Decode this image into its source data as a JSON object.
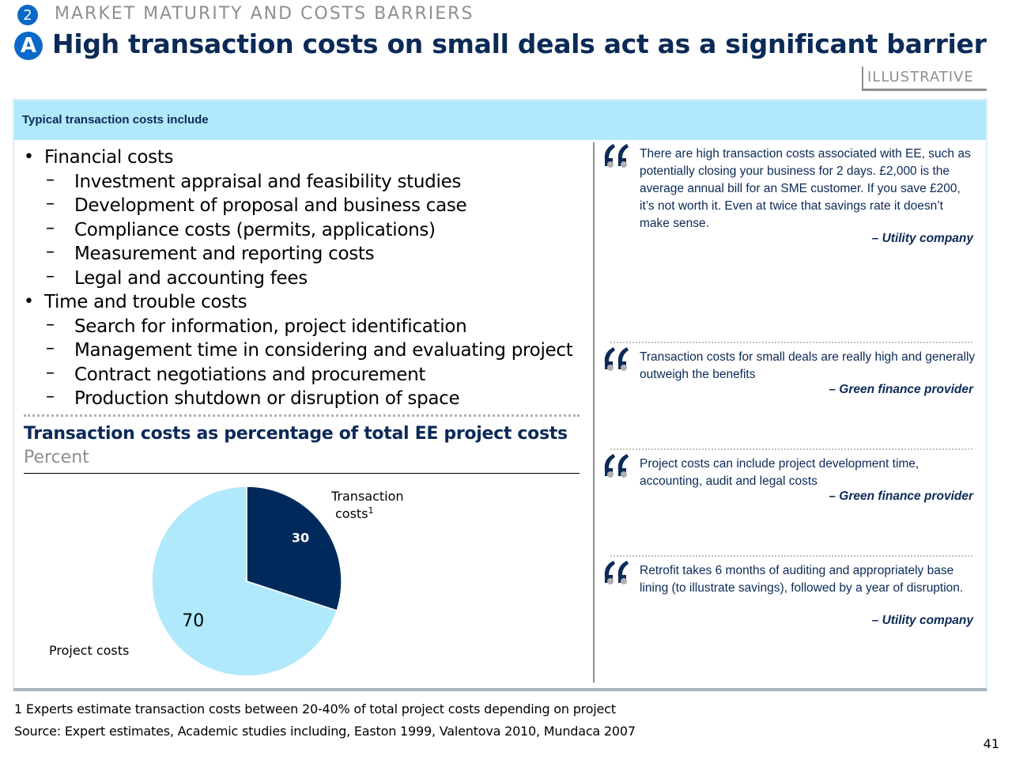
{
  "header": {
    "section_number": "2",
    "section_title": "MARKET MATURITY AND COSTS BARRIERS",
    "title_letter": "A",
    "title": "High transaction costs on small deals act as a significant barrier",
    "tag": "ILLUSTRATIVE"
  },
  "panel": {
    "header_label": "Typical transaction costs include",
    "list": [
      {
        "level": 1,
        "marker": "•",
        "text": "Financial costs"
      },
      {
        "level": 2,
        "marker": "–",
        "text": "Investment appraisal and feasibility studies"
      },
      {
        "level": 2,
        "marker": "–",
        "text": "Development of proposal and business case"
      },
      {
        "level": 2,
        "marker": "–",
        "text": "Compliance costs (permits, applications)"
      },
      {
        "level": 2,
        "marker": "–",
        "text": "Measurement and reporting costs"
      },
      {
        "level": 2,
        "marker": "–",
        "text": "Legal and accounting fees"
      },
      {
        "level": 1,
        "marker": "•",
        "text": "Time and trouble costs"
      },
      {
        "level": 2,
        "marker": "–",
        "text": "Search for information, project identification"
      },
      {
        "level": 2,
        "marker": "–",
        "text": "Management time in considering and evaluating project"
      },
      {
        "level": 2,
        "marker": "–",
        "text": "Contract negotiations and procurement"
      },
      {
        "level": 2,
        "marker": "–",
        "text": "Production shutdown or disruption of space"
      }
    ]
  },
  "chart_data": {
    "type": "pie",
    "title": "Transaction costs as percentage of total EE project costs",
    "unit": "Percent",
    "slices": [
      {
        "label": "Transaction costs",
        "label_footnote": "1",
        "value": 30,
        "color": "#002a5c",
        "value_color": "#ffffff"
      },
      {
        "label": "Project costs",
        "value": 70,
        "color": "#b0e9fc",
        "value_color": "#000000"
      }
    ]
  },
  "quotes": [
    {
      "text": "There are high transaction costs associated with EE, such as potentially closing your business for 2 days. £2,000 is the average annual bill for an SME customer. If you save £200, it’s not worth it. Even at twice that savings rate it doesn’t make sense.",
      "source": "– Utility company"
    },
    {
      "text": "Transaction costs for small deals are really high and generally outweigh the benefits",
      "source": "– Green finance provider"
    },
    {
      "text": "Project costs can include project development time, accounting, audit and legal costs",
      "source": "– Green finance provider"
    },
    {
      "text": "Retrofit takes 6 months of auditing and appropriately base lining (to illustrate savings), followed by a year of disruption.",
      "source": "– Utility company"
    }
  ],
  "footer": {
    "footnote": "1 Experts estimate transaction costs between 20-40% of total project costs depending on project",
    "source": "Source: Expert estimates, Academic studies including, Easton 1999, Valentova 2010, Mundaca 2007",
    "page_number": "41"
  },
  "colors": {
    "navy": "#0b2a57",
    "accent_blue": "#0a69c8",
    "light_blue": "#b0e9fc",
    "grey": "#8f8f8f"
  }
}
